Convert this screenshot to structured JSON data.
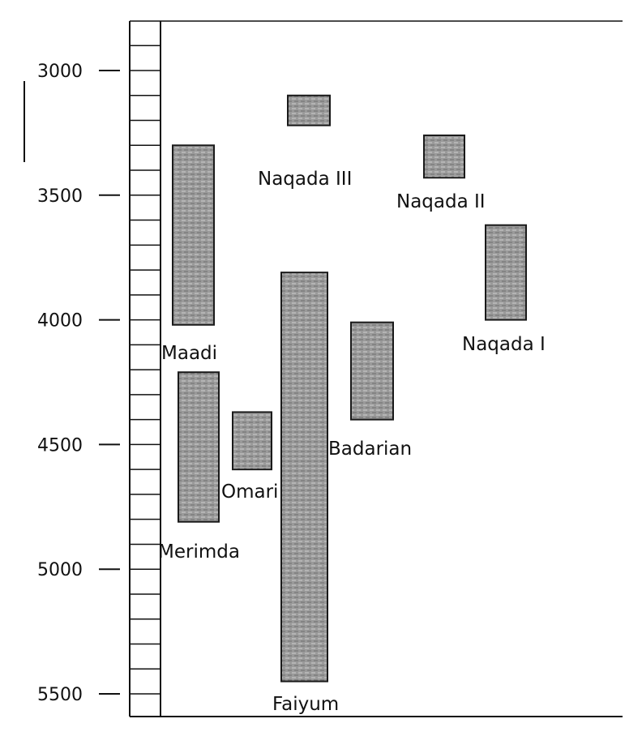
{
  "chart_data": {
    "type": "bar",
    "orientation": "vertical-ranges",
    "y_axis": {
      "ticks": [
        "3000",
        "3500",
        "4000",
        "4500",
        "5000",
        "5500"
      ],
      "tick_values": [
        3000,
        3500,
        4000,
        4500,
        5000,
        5500
      ],
      "ylim": [
        2800,
        5600
      ],
      "reversed": true,
      "minor_step": 100
    },
    "grid": false,
    "colors": {
      "bar_fill": "#8c8c8c",
      "bar_stroke": "#1a1a1a",
      "axis": "#111111"
    },
    "series": [
      {
        "label": "Naqada III",
        "start": 3100,
        "end": 3220
      },
      {
        "label": "Naqada II",
        "start": 3260,
        "end": 3430
      },
      {
        "label": "Maadi",
        "start": 3300,
        "end": 4020
      },
      {
        "label": "Naqada I",
        "start": 3620,
        "end": 4000
      },
      {
        "label": "Faiyum",
        "start": 3810,
        "end": 5450
      },
      {
        "label": "Badarian",
        "start": 4010,
        "end": 4400
      },
      {
        "label": "Merimda",
        "start": 4210,
        "end": 4810
      },
      {
        "label": "Omari",
        "start": 4370,
        "end": 4600
      }
    ]
  }
}
